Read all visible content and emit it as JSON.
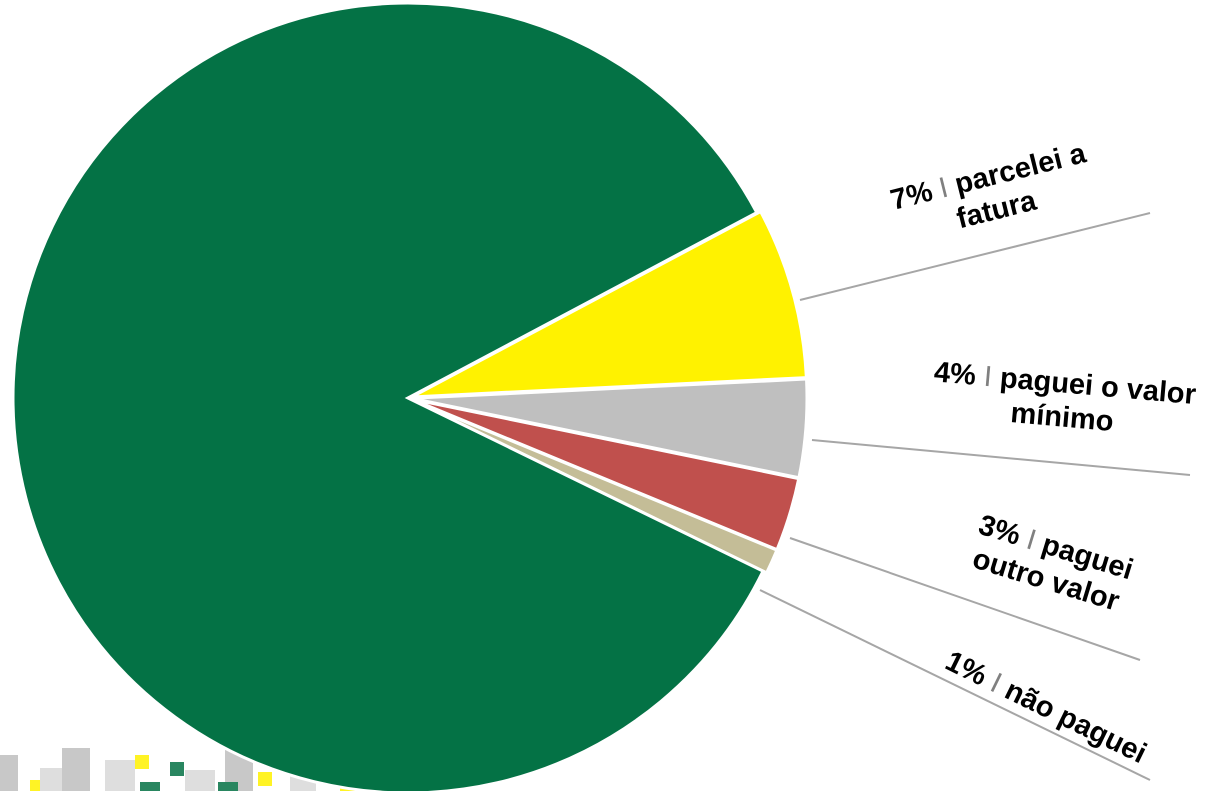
{
  "chart_data": {
    "type": "pie",
    "categories": [
      null,
      "parcelei a fatura",
      "paguei o valor mínimo",
      "paguei outro valor",
      "não paguei"
    ],
    "values": [
      85,
      7,
      4,
      3,
      1
    ],
    "value_labels": [
      null,
      "7%",
      "4%",
      "3%",
      "1%"
    ],
    "label_separator": "I",
    "colors": [
      "#047245",
      "#fff200",
      "#bfbfbf",
      "#c0504d",
      "#c4bd97"
    ],
    "start_angle": -28
  }
}
